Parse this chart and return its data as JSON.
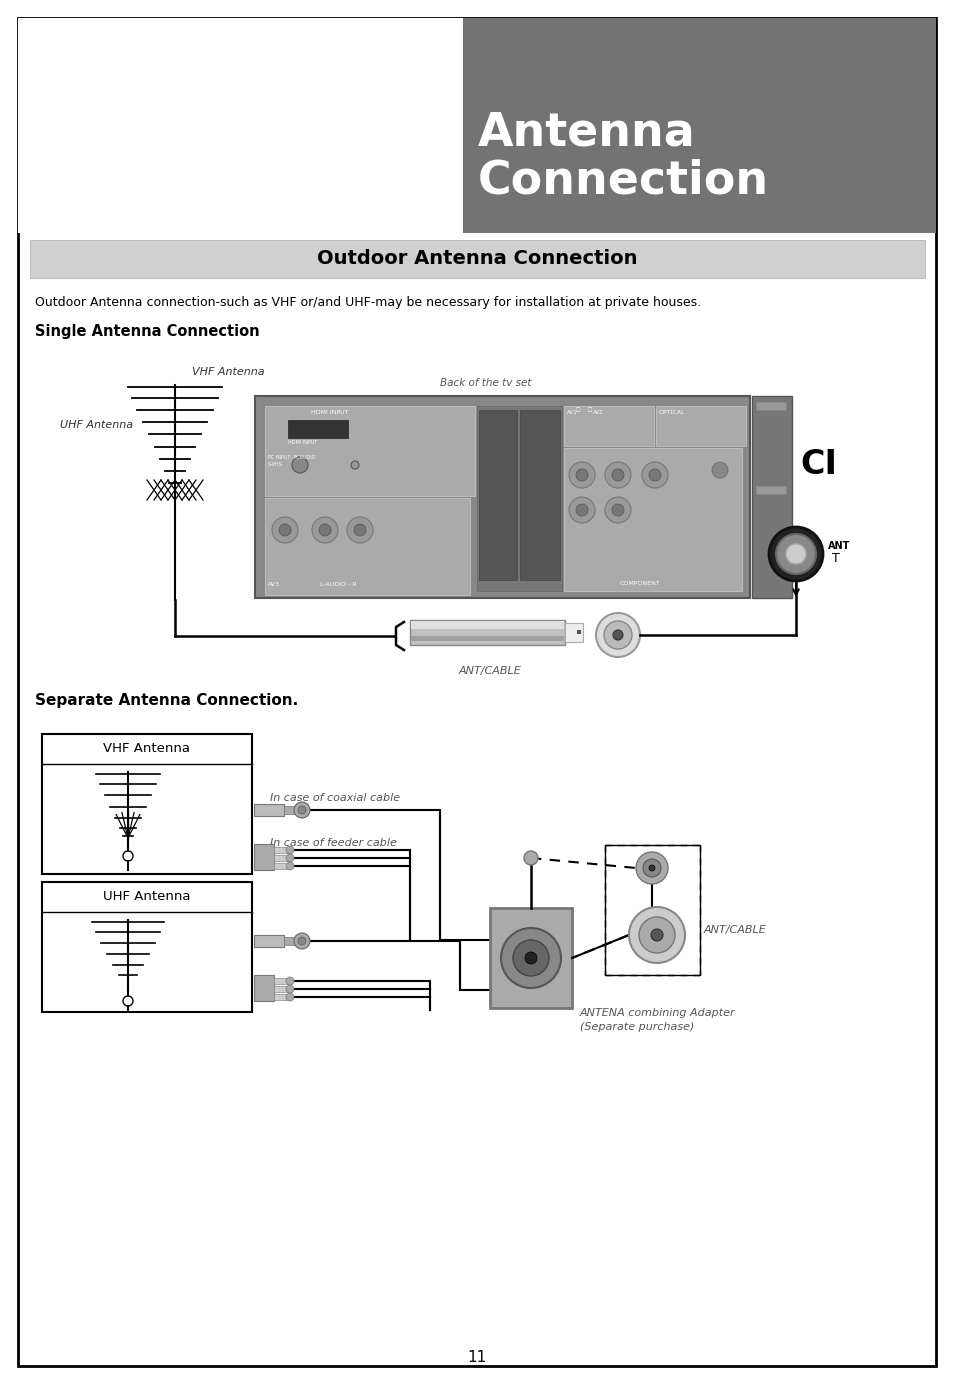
{
  "title_line1": "Antenna",
  "title_line2": "Connection",
  "title_bg_color": "#737373",
  "section_header": "Outdoor Antenna Connection",
  "section_header_bg": "#d0d0d0",
  "body_text": "Outdoor Antenna connection-such as VHF or/and UHF-may be necessary for installation at private houses.",
  "single_label": "Single Antenna Connection",
  "separate_label": "Separate Antenna Connection.",
  "vhf_label": "VHF Antenna",
  "uhf_label": "UHF Antenna",
  "vhf_antenna_label": "VHF Antenna",
  "uhf_antenna_label": "UHF Antenna",
  "back_tv_label": "Back of the tv set",
  "ant_cable_label": "ANT/CABLE",
  "ant_cable_label2": "ANT/CABLE",
  "ant_label": "ANT",
  "ci_label": "CI",
  "coaxial_label": "In case of coaxial cable",
  "feeder_label": "In case of feeder cable",
  "combining_label1": "ANTENA combining Adapter",
  "combining_label2": "(Separate purchase)",
  "page_num": "11",
  "bg_color": "#ffffff"
}
